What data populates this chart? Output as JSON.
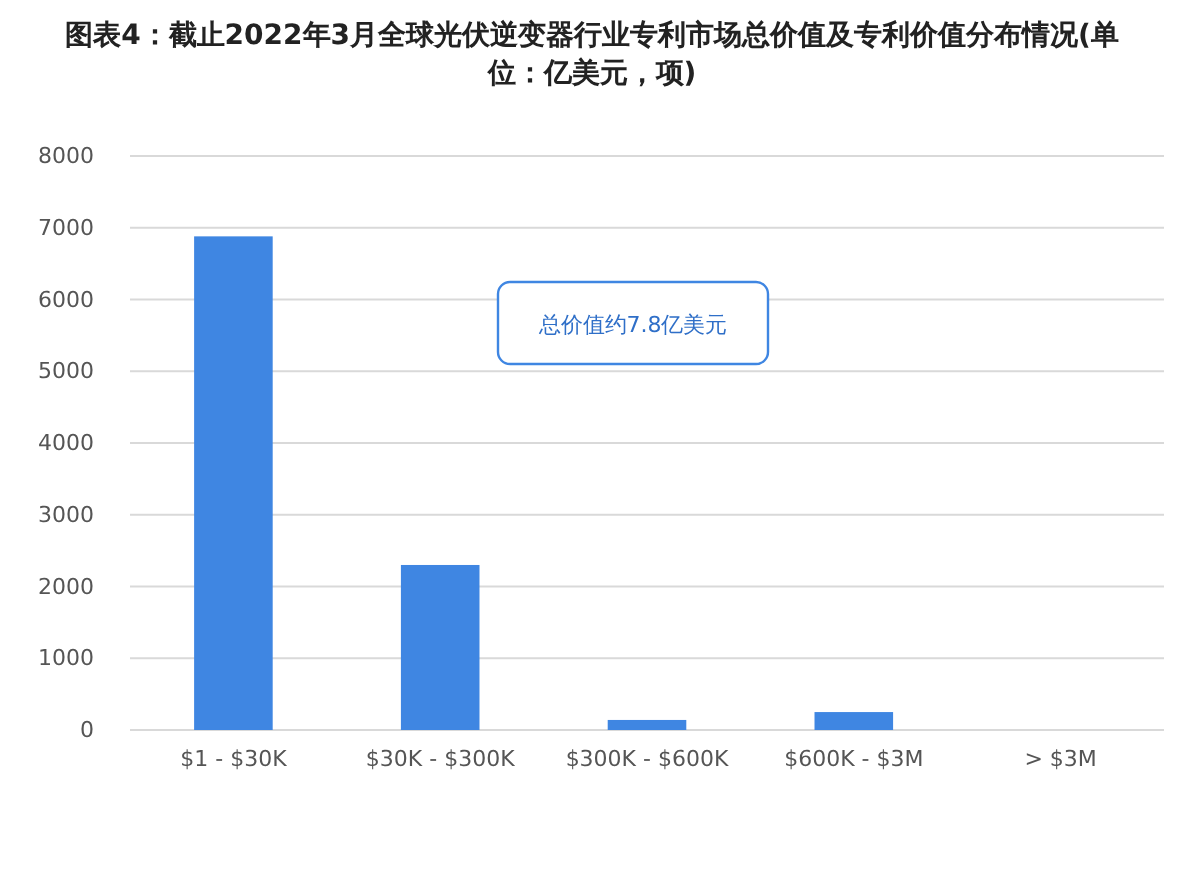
{
  "chart_data": {
    "type": "bar",
    "title": "图表4：截止2022年3月全球光伏逆变器行业专利市场总价值及专利价值分布情况(单位：亿美元，项)",
    "categories": [
      "$1 - $30K",
      "$30K - $300K",
      "$300K - $600K",
      "$600K - $3M",
      "> $3M"
    ],
    "values": [
      6880,
      2300,
      140,
      250,
      0
    ],
    "color": "#3f86e2",
    "ylim": [
      0,
      8000
    ],
    "yticks": [
      0,
      1000,
      2000,
      3000,
      4000,
      5000,
      6000,
      7000,
      8000
    ],
    "grid": "y",
    "annotations": [
      "总价值约7.8亿美元"
    ]
  }
}
